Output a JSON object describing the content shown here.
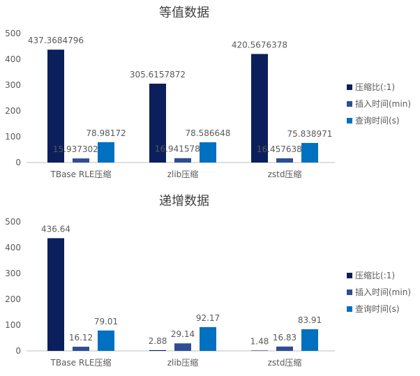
{
  "colors": {
    "compression_ratio": "#0b1f5c",
    "insert_time": "#2e4d93",
    "query_time": "#0070c0",
    "axis_text": "#595959",
    "title_text": "#404040",
    "gridline": "#d9d9d9",
    "axis_line": "#bfbfbf"
  },
  "chart_data": [
    {
      "type": "bar",
      "title": "等值数据",
      "categories": [
        "TBase RLE压缩",
        "zlib压缩",
        "zstd压缩"
      ],
      "series": [
        {
          "name": "压缩比(:1)",
          "values": [
            437.3684796,
            305.6157872,
            420.5676378
          ],
          "labels": [
            "437.3684796",
            "305.6157872",
            "420.5676378"
          ]
        },
        {
          "name": "插入时间(min)",
          "values": [
            15.93730212,
            16.94157853,
            16.45763882
          ],
          "labels": [
            "15.93730212",
            "16.94157853",
            "16.45763882"
          ]
        },
        {
          "name": "查询时间(s)",
          "values": [
            78.98172,
            78.586648,
            75.838971
          ],
          "labels": [
            "78.98172",
            "78.586648",
            "75.838971"
          ]
        }
      ],
      "yticks": [
        "0",
        "100",
        "200",
        "300",
        "400",
        "500"
      ],
      "ylim": [
        0,
        500
      ],
      "grid": false,
      "legend": "right"
    },
    {
      "type": "bar",
      "title": "递增数据",
      "categories": [
        "TBase RLE压缩",
        "zlib压缩",
        "zstd压缩"
      ],
      "series": [
        {
          "name": "压缩比(:1)",
          "values": [
            436.64,
            2.88,
            1.48
          ],
          "labels": [
            "436.64",
            "2.88",
            "1.48"
          ]
        },
        {
          "name": "插入时间(min)",
          "values": [
            16.12,
            29.14,
            16.83
          ],
          "labels": [
            "16.12",
            "29.14",
            "16.83"
          ]
        },
        {
          "name": "查询时间(s)",
          "values": [
            79.01,
            92.17,
            83.91
          ],
          "labels": [
            "79.01",
            "92.17",
            "83.91"
          ]
        }
      ],
      "yticks": [
        "0",
        "100",
        "200",
        "300",
        "400",
        "500"
      ],
      "ylim": [
        0,
        500
      ],
      "grid": false,
      "legend": "right"
    }
  ]
}
